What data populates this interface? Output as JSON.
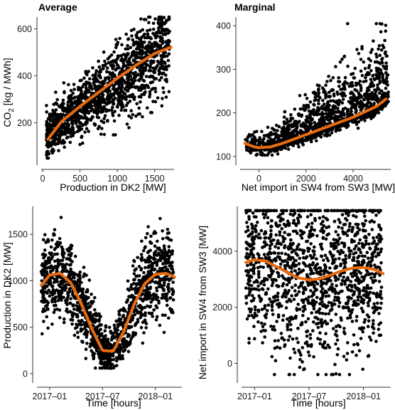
{
  "colors": {
    "points": "#000000",
    "trend": "#e86a10",
    "axis": "#333333"
  },
  "chart_data": [
    {
      "type": "scatter",
      "title": "Average",
      "xlabel": "Production in DK2 [MW]",
      "ylabel": "CO2 [kg / MWh]",
      "xlim": [
        -20,
        1760
      ],
      "ylim": [
        20,
        650
      ],
      "xticks": [
        0,
        500,
        1000,
        1500
      ],
      "yticks": [
        200,
        400,
        600
      ],
      "grid": false,
      "cloud": {
        "x_range": [
          50,
          1700
        ],
        "center_intercept": 135,
        "center_slope": 0.235,
        "spread_low": [
          50,
          150
        ],
        "spread_high": [
          350,
          650
        ]
      },
      "trend": {
        "x": [
          70,
          250,
          500,
          750,
          1000,
          1250,
          1500,
          1720
        ],
        "y": [
          130,
          205,
          270,
          330,
          390,
          445,
          495,
          522
        ]
      }
    },
    {
      "type": "scatter",
      "title": "Marginal",
      "xlabel": "Net import in SW4 from SW3 [MW]",
      "ylabel": "",
      "xlim": [
        -800,
        5600
      ],
      "ylim": [
        80,
        420
      ],
      "xticks": [
        0,
        2000,
        4000
      ],
      "yticks": [
        100,
        200,
        300,
        400
      ],
      "grid": false,
      "cloud": {
        "x_range": [
          -600,
          5500
        ],
        "floor": 105,
        "spread_top_at_max": 400
      },
      "trend": {
        "x": [
          -600,
          -200,
          0,
          500,
          1000,
          2000,
          3000,
          4000,
          5000,
          5400
        ],
        "y": [
          130,
          122,
          120,
          122,
          130,
          150,
          170,
          190,
          215,
          232
        ]
      }
    },
    {
      "type": "scatter",
      "title": "",
      "xlabel": "Time [hours]",
      "ylabel": "Production in DK2 [MW]",
      "xlim": [
        2016.88,
        2018.25
      ],
      "ylim": [
        -100,
        1800
      ],
      "xticks": [
        2017.0,
        2017.5,
        2018.0
      ],
      "xtick_labels": [
        "2017–01",
        "2017–07",
        "2018–01"
      ],
      "yticks": [
        0,
        500,
        1000,
        1500
      ],
      "grid": false,
      "trend": {
        "x": [
          2016.92,
          2017.0,
          2017.1,
          2017.2,
          2017.3,
          2017.4,
          2017.5,
          2017.6,
          2017.7,
          2017.8,
          2017.9,
          2018.0,
          2018.1,
          2018.18
        ],
        "y": [
          950,
          1060,
          1080,
          980,
          750,
          480,
          250,
          240,
          450,
          750,
          970,
          1070,
          1080,
          1040
        ]
      }
    },
    {
      "type": "scatter",
      "title": "",
      "xlabel": "Time [hours]",
      "ylabel": "Net import in SW4 from SW3 [MW]",
      "xlim": [
        2016.88,
        2018.25
      ],
      "ylim": [
        -700,
        5600
      ],
      "xticks": [
        2017.0,
        2017.5,
        2018.0
      ],
      "xtick_labels": [
        "2017–01",
        "2017–07",
        "2018–01"
      ],
      "yticks": [
        0,
        2000,
        4000
      ],
      "grid": false,
      "trend": {
        "x": [
          2016.92,
          2017.0,
          2017.1,
          2017.2,
          2017.3,
          2017.4,
          2017.5,
          2017.6,
          2017.7,
          2017.8,
          2017.9,
          2018.0,
          2018.1,
          2018.18
        ],
        "y": [
          3600,
          3700,
          3650,
          3450,
          3250,
          3050,
          2980,
          3020,
          3150,
          3300,
          3400,
          3420,
          3350,
          3200
        ]
      }
    }
  ]
}
